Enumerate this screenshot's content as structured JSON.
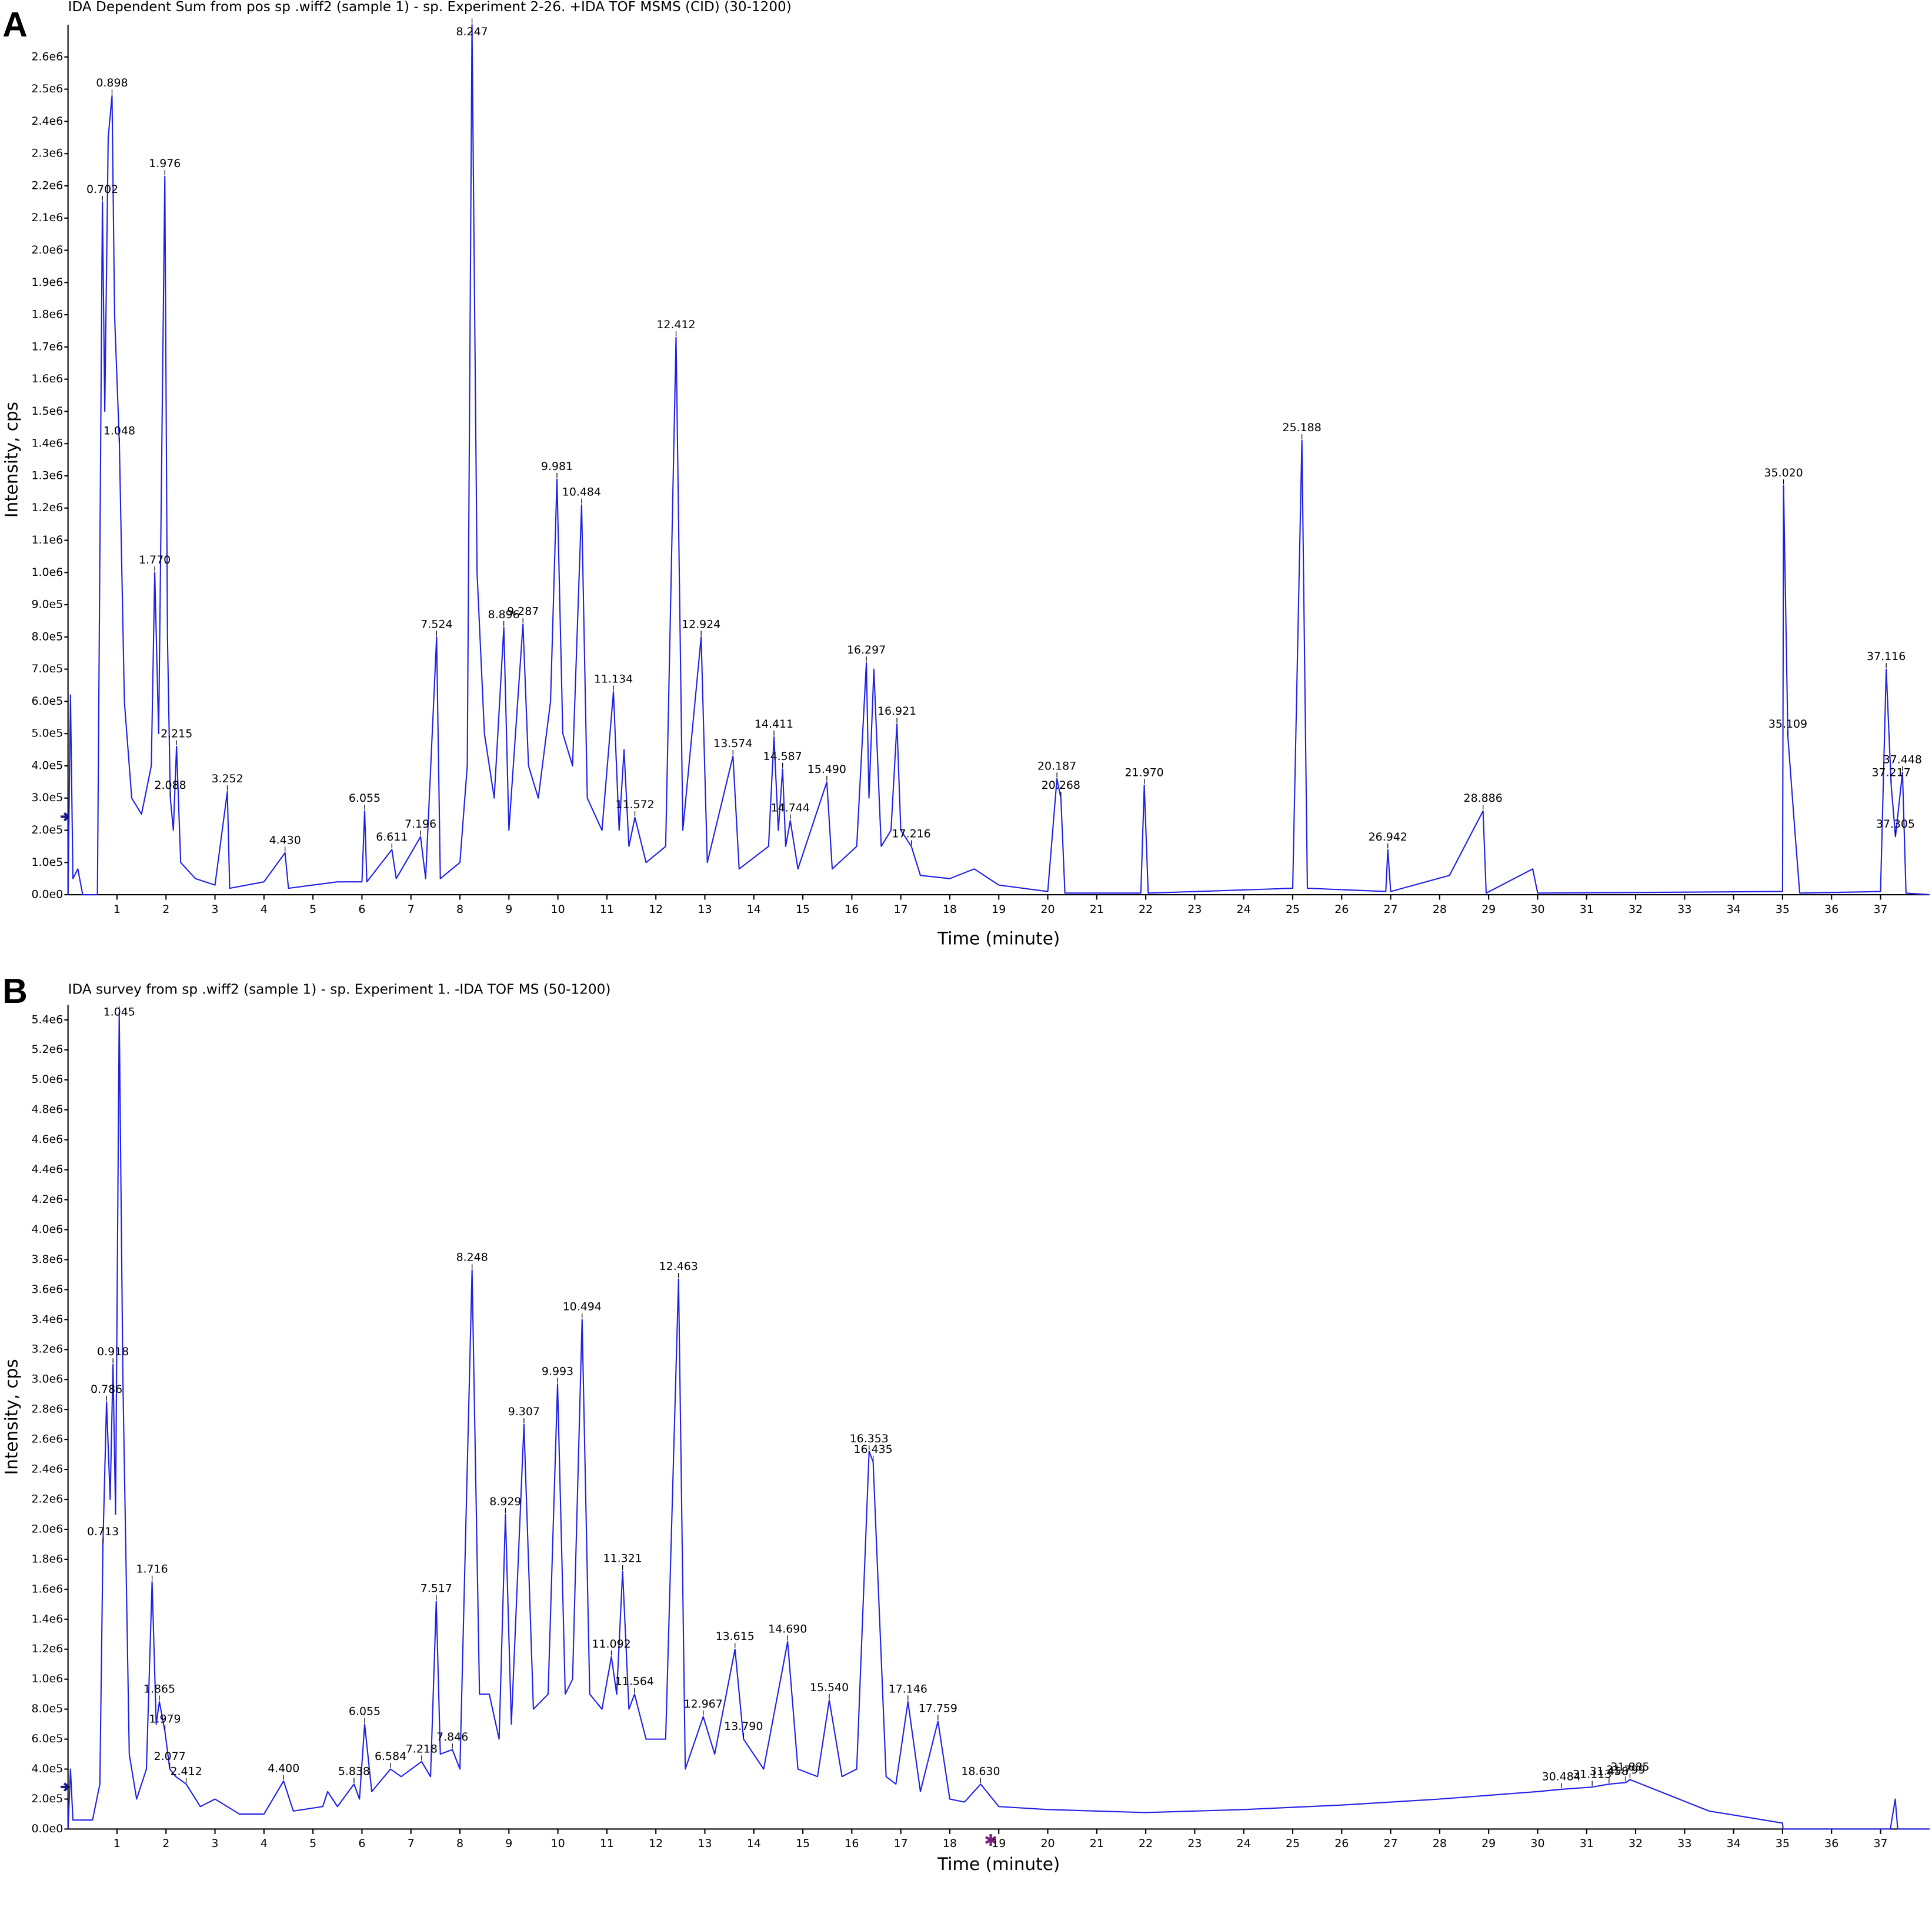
{
  "chart_data": [
    {
      "type": "line",
      "panel": "A",
      "title": "IDA Dependent Sum from pos sp .wiff2 (sample 1) - sp. Experiment 2-26. +IDA TOF MSMS (CID) (30-1200)",
      "x_label": "Time (minute)",
      "y_label": "Intensity, cps",
      "xlim": [
        0,
        38
      ],
      "ylim": [
        0,
        2700000
      ],
      "xticks": [
        1,
        2,
        3,
        4,
        5,
        6,
        7,
        8,
        9,
        10,
        11,
        12,
        13,
        14,
        15,
        16,
        17,
        18,
        19,
        20,
        21,
        22,
        23,
        24,
        25,
        26,
        27,
        28,
        29,
        30,
        31,
        32,
        33,
        34,
        35,
        36,
        37
      ],
      "yticks": [
        {
          "value": 0,
          "label": "0.0e0"
        },
        {
          "value": 100000,
          "label": "1.0e5"
        },
        {
          "value": 200000,
          "label": "2.0e5"
        },
        {
          "value": 300000,
          "label": "3.0e5"
        },
        {
          "value": 400000,
          "label": "4.0e5"
        },
        {
          "value": 500000,
          "label": "5.0e5"
        },
        {
          "value": 600000,
          "label": "6.0e5"
        },
        {
          "value": 700000,
          "label": "7.0e5"
        },
        {
          "value": 800000,
          "label": "8.0e5"
        },
        {
          "value": 900000,
          "label": "9.0e5"
        },
        {
          "value": 1000000,
          "label": "1.0e6"
        },
        {
          "value": 1100000,
          "label": "1.1e6"
        },
        {
          "value": 1200000,
          "label": "1.2e6"
        },
        {
          "value": 1300000,
          "label": "1.3e6"
        },
        {
          "value": 1400000,
          "label": "1.4e6"
        },
        {
          "value": 1500000,
          "label": "1.5e6"
        },
        {
          "value": 1600000,
          "label": "1.6e6"
        },
        {
          "value": 1700000,
          "label": "1.7e6"
        },
        {
          "value": 1800000,
          "label": "1.8e6"
        },
        {
          "value": 1900000,
          "label": "1.9e6"
        },
        {
          "value": 2000000,
          "label": "2.0e6"
        },
        {
          "value": 2100000,
          "label": "2.1e6"
        },
        {
          "value": 2200000,
          "label": "2.2e6"
        },
        {
          "value": 2300000,
          "label": "2.3e6"
        },
        {
          "value": 2400000,
          "label": "2.4e6"
        },
        {
          "value": 2500000,
          "label": "2.5e6"
        },
        {
          "value": 2600000,
          "label": "2.6e6"
        }
      ],
      "x": [
        0,
        0.05,
        0.1,
        0.2,
        0.3,
        0.6,
        0.702,
        0.75,
        0.82,
        0.898,
        0.95,
        1.048,
        1.15,
        1.3,
        1.5,
        1.7,
        1.77,
        1.85,
        1.976,
        2.03,
        2.088,
        2.15,
        2.215,
        2.3,
        2.6,
        3.0,
        3.252,
        3.3,
        4.0,
        4.43,
        4.5,
        5.5,
        6.0,
        6.055,
        6.1,
        6.611,
        6.7,
        7.196,
        7.3,
        7.524,
        7.6,
        8.0,
        8.15,
        8.247,
        8.35,
        8.5,
        8.7,
        8.896,
        9.0,
        9.287,
        9.4,
        9.6,
        9.85,
        9.981,
        10.1,
        10.3,
        10.484,
        10.6,
        10.9,
        11.134,
        11.25,
        11.35,
        11.45,
        11.572,
        11.8,
        12.2,
        12.412,
        12.55,
        12.924,
        13.05,
        13.574,
        13.7,
        14.3,
        14.411,
        14.5,
        14.587,
        14.65,
        14.744,
        14.9,
        15.49,
        15.6,
        16.1,
        16.297,
        16.35,
        16.45,
        16.6,
        16.8,
        16.921,
        17.0,
        17.216,
        17.4,
        18.0,
        18.5,
        19.0,
        20.0,
        20.187,
        20.268,
        20.35,
        21.9,
        21.97,
        22.05,
        25.0,
        25.188,
        25.3,
        26.9,
        26.942,
        27.0,
        28.2,
        28.886,
        28.95,
        29.9,
        30.0,
        35.0,
        35.02,
        35.109,
        35.25,
        35.35,
        37.0,
        37.116,
        37.217,
        37.305,
        37.448,
        37.52,
        38
      ],
      "series": [
        {
          "color": "#1f1fe6",
          "values": [
            0,
            620000,
            50000,
            80000,
            0,
            0,
            2150000,
            1500000,
            2350000,
            2480000,
            1800000,
            1400000,
            600000,
            300000,
            250000,
            400000,
            1000000,
            500000,
            2230000,
            800000,
            300000,
            200000,
            460000,
            100000,
            50000,
            30000,
            320000,
            20000,
            40000,
            130000,
            20000,
            40000,
            40000,
            260000,
            40000,
            140000,
            50000,
            180000,
            50000,
            800000,
            50000,
            100000,
            400000,
            2700000,
            1000000,
            500000,
            300000,
            830000,
            200000,
            840000,
            400000,
            300000,
            600000,
            1290000,
            500000,
            400000,
            1210000,
            300000,
            200000,
            630000,
            200000,
            450000,
            150000,
            240000,
            100000,
            150000,
            1730000,
            200000,
            800000,
            100000,
            430000,
            80000,
            150000,
            490000,
            200000,
            390000,
            150000,
            230000,
            80000,
            350000,
            80000,
            150000,
            720000,
            300000,
            700000,
            150000,
            200000,
            530000,
            200000,
            150000,
            60000,
            50000,
            80000,
            30000,
            10000,
            360000,
            300000,
            5000,
            5000,
            340000,
            5000,
            20000,
            1410000,
            20000,
            10000,
            140000,
            10000,
            60000,
            260000,
            5000,
            80000,
            5000,
            10000,
            1270000,
            490000,
            200000,
            5000,
            10000,
            700000,
            340000,
            180000,
            380000,
            5000,
            0
          ]
        }
      ],
      "peaks": {
        "x": [
          0.702,
          0.898,
          1.048,
          1.77,
          1.976,
          2.088,
          2.215,
          3.252,
          4.43,
          6.055,
          6.611,
          7.196,
          7.524,
          8.247,
          8.896,
          9.287,
          9.981,
          10.484,
          11.134,
          11.572,
          12.412,
          12.924,
          13.574,
          14.411,
          14.587,
          14.744,
          15.49,
          16.297,
          16.921,
          17.216,
          20.187,
          20.268,
          21.97,
          25.188,
          26.942,
          28.886,
          35.02,
          35.109,
          37.116,
          37.217,
          37.305,
          37.448
        ],
        "x_labels": [
          "0.702",
          "0.898",
          "1.048",
          "1.770",
          "1.976",
          "2.088",
          "2.215",
          "3.252",
          "4.430",
          "6.055",
          "6.611",
          "7.196",
          "7.524",
          "8.247",
          "8.896",
          "9.287",
          "9.981",
          "10.484",
          "11.134",
          "11.572",
          "12.412",
          "12.924",
          "13.574",
          "14.411",
          "14.587",
          "14.744",
          "15.490",
          "16.297",
          "16.921",
          "17.216",
          "20.187",
          "20.268",
          "21.970",
          "25.188",
          "26.942",
          "28.886",
          "35.020",
          "35.109",
          "37.116",
          "37.217",
          "37.305",
          "37.448"
        ],
        "values": [
          2150000,
          2480000,
          1400000,
          1000000,
          2230000,
          300000,
          460000,
          320000,
          130000,
          260000,
          140000,
          180000,
          800000,
          2700000,
          830000,
          840000,
          1290000,
          1210000,
          630000,
          240000,
          1730000,
          800000,
          430000,
          490000,
          390000,
          230000,
          350000,
          720000,
          530000,
          150000,
          360000,
          300000,
          340000,
          1410000,
          140000,
          260000,
          1270000,
          490000,
          700000,
          340000,
          180000,
          380000
        ]
      }
    },
    {
      "type": "line",
      "panel": "B",
      "title": "IDA survey from sp .wiff2 (sample 1) - sp. Experiment 1. -IDA TOF MS (50-1200)",
      "x_label": "Time (minute)",
      "y_label": "Intensity, cps",
      "xlim": [
        0,
        38
      ],
      "ylim": [
        0,
        5500000
      ],
      "xticks": [
        1,
        2,
        3,
        4,
        5,
        6,
        7,
        8,
        9,
        10,
        11,
        12,
        13,
        14,
        15,
        16,
        17,
        18,
        19,
        20,
        21,
        22,
        23,
        24,
        25,
        26,
        27,
        28,
        29,
        30,
        31,
        32,
        33,
        34,
        35,
        36,
        37
      ],
      "yticks": [
        {
          "value": 0,
          "label": "0.0e0"
        },
        {
          "value": 200000,
          "label": "2.0e5"
        },
        {
          "value": 400000,
          "label": "4.0e5"
        },
        {
          "value": 600000,
          "label": "6.0e5"
        },
        {
          "value": 800000,
          "label": "8.0e5"
        },
        {
          "value": 1000000,
          "label": "1.0e6"
        },
        {
          "value": 1200000,
          "label": "1.2e6"
        },
        {
          "value": 1400000,
          "label": "1.4e6"
        },
        {
          "value": 1600000,
          "label": "1.6e6"
        },
        {
          "value": 1800000,
          "label": "1.8e6"
        },
        {
          "value": 2000000,
          "label": "2.0e6"
        },
        {
          "value": 2200000,
          "label": "2.2e6"
        },
        {
          "value": 2400000,
          "label": "2.4e6"
        },
        {
          "value": 2600000,
          "label": "2.6e6"
        },
        {
          "value": 2800000,
          "label": "2.8e6"
        },
        {
          "value": 3000000,
          "label": "3.0e6"
        },
        {
          "value": 3200000,
          "label": "3.2e6"
        },
        {
          "value": 3400000,
          "label": "3.4e6"
        },
        {
          "value": 3600000,
          "label": "3.6e6"
        },
        {
          "value": 3800000,
          "label": "3.8e6"
        },
        {
          "value": 4000000,
          "label": "4.0e6"
        },
        {
          "value": 4200000,
          "label": "4.2e6"
        },
        {
          "value": 4400000,
          "label": "4.4e6"
        },
        {
          "value": 4600000,
          "label": "4.6e6"
        },
        {
          "value": 4800000,
          "label": "4.8e6"
        },
        {
          "value": 5000000,
          "label": "5.0e6"
        },
        {
          "value": 5200000,
          "label": "5.2e6"
        },
        {
          "value": 5400000,
          "label": "5.4e6"
        }
      ],
      "x": [
        0,
        0.05,
        0.1,
        0.5,
        0.65,
        0.713,
        0.786,
        0.86,
        0.918,
        0.97,
        1.045,
        1.12,
        1.25,
        1.4,
        1.6,
        1.716,
        1.8,
        1.865,
        1.979,
        2.077,
        2.2,
        2.412,
        2.7,
        3.0,
        3.5,
        4.0,
        4.4,
        4.6,
        5.2,
        5.3,
        5.5,
        5.838,
        5.95,
        6.055,
        6.2,
        6.584,
        6.8,
        7.218,
        7.4,
        7.517,
        7.6,
        7.846,
        8.0,
        8.248,
        8.4,
        8.6,
        8.8,
        8.929,
        9.05,
        9.307,
        9.5,
        9.8,
        9.993,
        10.15,
        10.3,
        10.494,
        10.65,
        10.9,
        11.092,
        11.2,
        11.321,
        11.45,
        11.564,
        11.8,
        12.2,
        12.463,
        12.6,
        12.967,
        13.2,
        13.615,
        13.79,
        14.2,
        14.69,
        14.9,
        15.3,
        15.54,
        15.8,
        16.1,
        16.353,
        16.435,
        16.7,
        16.9,
        17.146,
        17.4,
        17.759,
        18.0,
        18.3,
        18.63,
        19.0,
        20,
        22,
        24,
        26,
        28,
        30,
        30.484,
        31.113,
        31.458,
        31.799,
        31.885,
        32.5,
        33.5,
        35.0,
        35.01,
        37.2,
        37.3,
        37.35,
        38
      ],
      "series": [
        {
          "color": "#1f1fe6",
          "values": [
            0,
            400000,
            60000,
            60000,
            300000,
            1900000,
            2850000,
            2200000,
            3100000,
            2100000,
            5450000,
            3000000,
            500000,
            200000,
            400000,
            1650000,
            700000,
            850000,
            650000,
            400000,
            350000,
            300000,
            150000,
            200000,
            100000,
            100000,
            320000,
            120000,
            150000,
            250000,
            150000,
            300000,
            200000,
            700000,
            250000,
            400000,
            350000,
            450000,
            350000,
            1520000,
            500000,
            530000,
            400000,
            3730000,
            900000,
            900000,
            600000,
            2100000,
            700000,
            2700000,
            800000,
            900000,
            2970000,
            900000,
            1000000,
            3400000,
            900000,
            800000,
            1150000,
            900000,
            1720000,
            800000,
            900000,
            600000,
            600000,
            3670000,
            400000,
            750000,
            500000,
            1200000,
            600000,
            400000,
            1250000,
            400000,
            350000,
            860000,
            350000,
            400000,
            2520000,
            2450000,
            350000,
            300000,
            850000,
            250000,
            720000,
            200000,
            180000,
            300000,
            150000,
            130000,
            110000,
            130000,
            160000,
            200000,
            250000,
            265000,
            280000,
            300000,
            310000,
            330000,
            250000,
            120000,
            40000,
            0,
            0,
            200000,
            0,
            0
          ]
        }
      ],
      "peaks": {
        "x": [
          0.713,
          0.786,
          0.918,
          1.045,
          1.716,
          1.865,
          1.979,
          2.077,
          2.412,
          4.4,
          5.838,
          6.055,
          6.584,
          7.218,
          7.517,
          7.846,
          8.248,
          8.929,
          9.307,
          9.993,
          10.494,
          11.092,
          11.321,
          11.564,
          12.463,
          12.967,
          13.615,
          13.79,
          14.69,
          15.54,
          16.353,
          16.435,
          17.146,
          17.759,
          18.63,
          30.484,
          31.113,
          31.458,
          31.799,
          31.885
        ],
        "x_labels": [
          "0.713",
          "0.786",
          "0.918",
          "1.045",
          "1.716",
          "1.865",
          "1.979",
          "2.077",
          "2.412",
          "4.400",
          "5.838",
          "6.055",
          "6.584",
          "7.218",
          "7.517",
          "7.846",
          "8.248",
          "8.929",
          "9.307",
          "9.993",
          "10.494",
          "11.092",
          "11.321",
          "11.564",
          "12.463",
          "12.967",
          "13.615",
          "13.790",
          "14.690",
          "15.540",
          "16.353",
          "16.435",
          "17.146",
          "17.759",
          "18.630",
          "30.484",
          "31.113",
          "31.458",
          "31.799",
          "31.885"
        ],
        "values": [
          1900000,
          2850000,
          3100000,
          5450000,
          1650000,
          850000,
          650000,
          400000,
          300000,
          320000,
          300000,
          700000,
          400000,
          450000,
          1520000,
          530000,
          3730000,
          2100000,
          2700000,
          2970000,
          3400000,
          1150000,
          1720000,
          900000,
          3670000,
          750000,
          1200000,
          600000,
          1250000,
          860000,
          2520000,
          2450000,
          850000,
          720000,
          300000,
          265000,
          280000,
          300000,
          310000,
          330000
        ]
      }
    }
  ]
}
